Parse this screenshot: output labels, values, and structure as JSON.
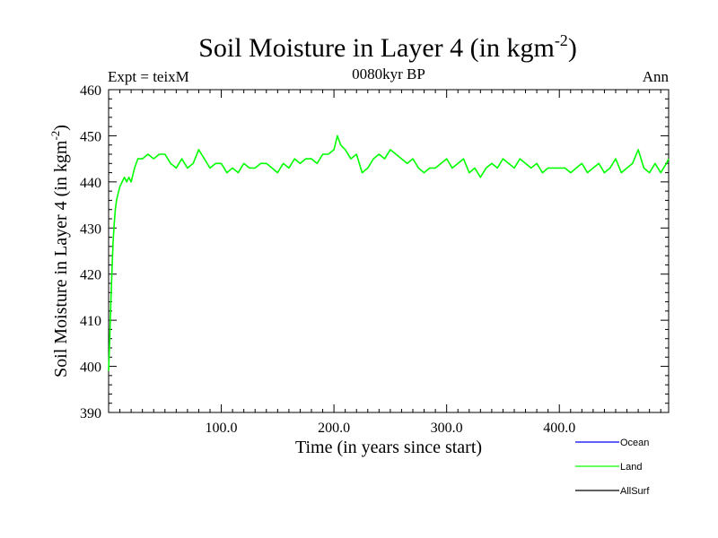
{
  "chart_data": {
    "type": "line",
    "title": "Soil Moisture in Layer 4 (in kgm",
    "title_superscript": "-2",
    "title_close": ")",
    "subtitle": "0080kyr BP",
    "left_label": "Expt = teixM",
    "right_label": "Ann",
    "xlabel": "Time (in years since start)",
    "ylabel": "Soil Moisture in Layer 4 (in kgm",
    "ylabel_superscript": "-2",
    "ylabel_close": ")",
    "xlim": [
      0,
      497
    ],
    "ylim": [
      390,
      460
    ],
    "x_ticks": [
      100,
      200,
      300,
      400
    ],
    "x_tick_labels": [
      "100.0",
      "200.0",
      "300.0",
      "400.0"
    ],
    "y_ticks": [
      390,
      400,
      410,
      420,
      430,
      440,
      450,
      460
    ],
    "y_tick_labels": [
      "390",
      "400",
      "410",
      "420",
      "430",
      "440",
      "450",
      "460"
    ],
    "legend_position": "bottom-right",
    "series": [
      {
        "name": "Ocean",
        "color": "#0000ff",
        "values": []
      },
      {
        "name": "AllSurf",
        "color": "#000000",
        "values": []
      },
      {
        "name": "Land",
        "color": "#00ff00",
        "x": [
          0,
          1,
          2,
          3,
          4,
          5,
          6,
          7,
          8,
          9,
          10,
          12,
          14,
          16,
          18,
          20,
          23,
          26,
          30,
          35,
          40,
          45,
          50,
          55,
          60,
          65,
          70,
          75,
          80,
          85,
          90,
          95,
          100,
          105,
          110,
          115,
          120,
          125,
          130,
          135,
          140,
          145,
          150,
          155,
          160,
          165,
          170,
          175,
          180,
          185,
          190,
          195,
          200,
          203,
          206,
          210,
          215,
          220,
          225,
          230,
          235,
          240,
          245,
          250,
          255,
          260,
          265,
          270,
          275,
          280,
          285,
          290,
          295,
          300,
          305,
          310,
          315,
          320,
          325,
          330,
          335,
          340,
          345,
          350,
          355,
          360,
          365,
          370,
          375,
          380,
          385,
          390,
          395,
          400,
          405,
          410,
          415,
          420,
          425,
          430,
          435,
          440,
          445,
          450,
          455,
          460,
          465,
          470,
          475,
          480,
          485,
          490,
          495,
          497
        ],
        "values": [
          399,
          406,
          414,
          421,
          427,
          431,
          434,
          436,
          437,
          438,
          439,
          440,
          441,
          440,
          441,
          440,
          443,
          445,
          445,
          446,
          445,
          446,
          446,
          444,
          443,
          445,
          443,
          444,
          447,
          445,
          443,
          444,
          444,
          442,
          443,
          442,
          444,
          443,
          443,
          444,
          444,
          443,
          442,
          444,
          443,
          445,
          444,
          445,
          445,
          444,
          446,
          446,
          447,
          450,
          448,
          447,
          445,
          446,
          442,
          443,
          445,
          446,
          445,
          447,
          446,
          445,
          444,
          445,
          443,
          442,
          443,
          443,
          444,
          445,
          443,
          444,
          445,
          442,
          443,
          441,
          443,
          444,
          443,
          445,
          444,
          443,
          445,
          444,
          443,
          444,
          442,
          443,
          443,
          443,
          443,
          442,
          443,
          444,
          442,
          443,
          444,
          442,
          443,
          445,
          442,
          443,
          444,
          447,
          443,
          442,
          444,
          442,
          444,
          445
        ]
      }
    ]
  }
}
